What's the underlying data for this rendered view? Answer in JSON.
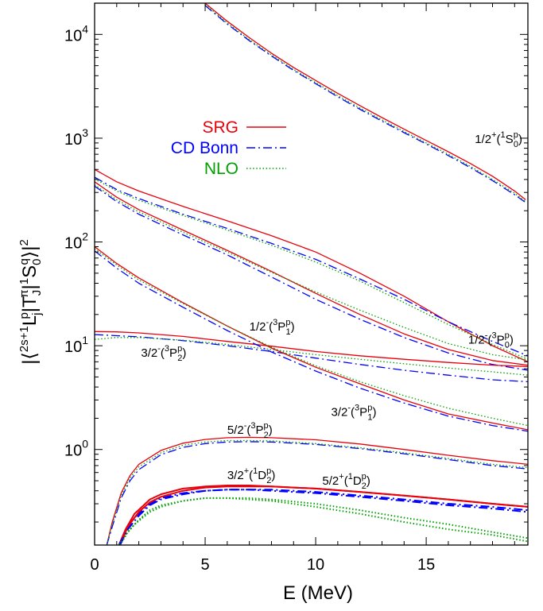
{
  "chart_data": {
    "type": "line",
    "title": "",
    "xlabel": "E  (MeV)",
    "ylabel": "|⟨2s+1Ljp|TJπ|1S0q⟩|2",
    "ylabel_parts": {
      "open": "|⟨",
      "sup1": "2s+1",
      "L": "L",
      "sub1": "j",
      "sup2": "p",
      "mid": "|T",
      "sub2": "J",
      "sup3": "π",
      "bar": "|",
      "sup4": "1",
      "S": "S",
      "sub3": "0",
      "sup5": "q",
      "close": "⟩|",
      "sup6": "2"
    },
    "xlim": [
      0,
      19.6
    ],
    "ylim": [
      0.12,
      20000
    ],
    "yscale": "log",
    "xticks": [
      0,
      5,
      10,
      15
    ],
    "xtick_labels": [
      "0",
      "5",
      "10",
      "15"
    ],
    "yticks": [
      1,
      10,
      100,
      1000,
      10000
    ],
    "ytick_labels": [
      {
        "base": "10",
        "exp": "0"
      },
      {
        "base": "10",
        "exp": "1"
      },
      {
        "base": "10",
        "exp": "2"
      },
      {
        "base": "10",
        "exp": "3"
      },
      {
        "base": "10",
        "exp": "4"
      }
    ],
    "legend_position": "upper-left",
    "legend": [
      {
        "name": "SRG",
        "color": "#e8000b",
        "dash": "solid"
      },
      {
        "name": "CD Bonn",
        "color": "#0000ff",
        "dash": "dashdot"
      },
      {
        "name": "NLO",
        "color": "#00a000",
        "dash": "dotted"
      }
    ],
    "channels": [
      {
        "label": {
          "j": "1/2",
          "parity": "+",
          "spin": "1",
          "L": "S",
          "sub": "0"
        },
        "label_anchor_data": [
          17.2,
          900
        ],
        "x": [
          5.0,
          6,
          7,
          8,
          9,
          10,
          11,
          12,
          13,
          14,
          15,
          16,
          17,
          18,
          19,
          19.5
        ],
        "series": [
          {
            "name": "SRG",
            "values": [
              20000,
              13400,
              9300,
              6600,
              4800,
              3600,
              2700,
              2060,
              1580,
              1220,
              950,
              740,
              570,
              430,
              310,
              255
            ]
          },
          {
            "name": "CD Bonn",
            "values": [
              19000,
              12600,
              8700,
              6200,
              4500,
              3350,
              2500,
              1900,
              1460,
              1130,
              880,
              680,
              520,
              390,
              285,
              240
            ]
          },
          {
            "name": "NLO",
            "values": [
              19400,
              12900,
              8900,
              6350,
              4600,
              3430,
              2570,
              1950,
              1500,
              1160,
              900,
              700,
              535,
              400,
              295,
              245
            ]
          }
        ]
      },
      {
        "label": {
          "j": "1/2",
          "parity": "-",
          "spin": "3",
          "L": "P",
          "sub": "0"
        },
        "label_anchor_data": [
          16.9,
          10.5
        ],
        "x": [
          0,
          1,
          2,
          4,
          6,
          8,
          10,
          12,
          14,
          16,
          18,
          19.6
        ],
        "series": [
          {
            "name": "SRG",
            "values": [
              500,
              380,
              310,
              220,
              160,
              115,
              80,
              50,
              30,
              17,
              10,
              7
            ]
          },
          {
            "name": "CD Bonn",
            "values": [
              420,
              320,
              262,
              185,
              135,
              97,
              68,
              44,
              28,
              17,
              11,
              8
            ]
          },
          {
            "name": "NLO",
            "values": [
              405,
              310,
              252,
              180,
              130,
              93,
              64,
              42,
              26,
              16,
              10.3,
              7.4
            ]
          }
        ]
      },
      {
        "label": {
          "j": "1/2",
          "parity": "-",
          "spin": "3",
          "L": "P",
          "sub": "1"
        },
        "label_anchor_data": [
          7.0,
          14
        ],
        "x": [
          0,
          1,
          2,
          4,
          6,
          8,
          10,
          12,
          14,
          16,
          18,
          19.6
        ],
        "series": [
          {
            "name": "SRG",
            "values": [
              380,
              270,
              205,
              130,
              83,
              52,
              32,
              20,
              13,
              9.2,
              7.2,
              6.5
            ]
          },
          {
            "name": "CD Bonn",
            "values": [
              345,
              245,
              185,
              117,
              75,
              46,
              28,
              18,
              12,
              8.5,
              6.6,
              5.8
            ]
          },
          {
            "name": "NLO",
            "values": [
              355,
              255,
              195,
              124,
              80,
              51,
              33,
              22,
              15,
              10.5,
              8.2,
              7.3
            ]
          }
        ]
      },
      {
        "label": {
          "j": "3/2",
          "parity": "-",
          "spin": "3",
          "L": "P",
          "sub": "2"
        },
        "label_anchor_data": [
          2.1,
          7.8
        ],
        "x": [
          0,
          1,
          2,
          4,
          6,
          8,
          10,
          12,
          14,
          16,
          18,
          19.6
        ],
        "series": [
          {
            "name": "SRG",
            "values": [
              13.7,
              13.6,
              13.3,
              12.3,
              11.0,
              9.9,
              8.8,
              8.0,
              7.4,
              6.9,
              6.5,
              6.3
            ]
          },
          {
            "name": "CD Bonn",
            "values": [
              12.8,
              12.5,
              12.2,
              11.2,
              10.0,
              8.8,
              7.6,
              6.6,
              5.8,
              5.2,
              4.7,
              4.5
            ]
          },
          {
            "name": "NLO",
            "values": [
              11.5,
              12.0,
              12.0,
              11.3,
              10.3,
              9.2,
              8.2,
              7.4,
              6.7,
              6.1,
              5.6,
              5.2
            ]
          }
        ]
      },
      {
        "label": {
          "j": "3/2",
          "parity": "-",
          "spin": "3",
          "L": "P",
          "sub": "1"
        },
        "label_anchor_data": [
          10.7,
          2.1
        ],
        "x": [
          0,
          1,
          2,
          4,
          6,
          8,
          10,
          12,
          14,
          16,
          18,
          19.6
        ],
        "series": [
          {
            "name": "SRG",
            "values": [
              90,
              62,
              45,
              26,
              15.5,
              9.5,
              6.2,
              4.3,
              3.0,
              2.2,
              1.8,
              1.55
            ]
          },
          {
            "name": "CD Bonn",
            "values": [
              82,
              56,
              40,
              23.5,
              14,
              8.7,
              5.7,
              3.9,
              2.8,
              2.1,
              1.7,
              1.5
            ]
          },
          {
            "name": "NLO",
            "values": [
              86,
              60,
              43,
              25.5,
              15.5,
              9.7,
              6.4,
              4.5,
              3.3,
              2.5,
              2.0,
              1.7
            ]
          }
        ]
      },
      {
        "label": {
          "j": "5/2",
          "parity": "-",
          "spin": "3",
          "L": "P",
          "sub": "2"
        },
        "label_anchor_data": [
          6.0,
          1.42
        ],
        "x": [
          0.55,
          0.8,
          1.2,
          1.6,
          2,
          3,
          4,
          5,
          6,
          7,
          8,
          10,
          12,
          14,
          16,
          18,
          19.6
        ],
        "series": [
          {
            "name": "SRG",
            "values": [
              0.12,
              0.2,
              0.38,
              0.56,
              0.72,
              0.98,
              1.15,
              1.25,
              1.3,
              1.31,
              1.3,
              1.24,
              1.13,
              1.0,
              0.88,
              0.78,
              0.72
            ]
          },
          {
            "name": "CD Bonn",
            "values": [
              0.12,
              0.18,
              0.34,
              0.5,
              0.64,
              0.89,
              1.05,
              1.14,
              1.18,
              1.19,
              1.18,
              1.12,
              1.02,
              0.91,
              0.8,
              0.7,
              0.65
            ]
          },
          {
            "name": "NLO",
            "values": [
              0.12,
              0.19,
              0.36,
              0.53,
              0.68,
              0.93,
              1.1,
              1.18,
              1.22,
              1.22,
              1.21,
              1.14,
              1.04,
              0.93,
              0.82,
              0.72,
              0.67
            ]
          }
        ]
      },
      {
        "label": {
          "j": "3/2",
          "parity": "+",
          "spin": "1",
          "L": "D",
          "sub": "2"
        },
        "label_anchor_data": [
          6.0,
          0.52
        ],
        "x": [
          1.1,
          1.4,
          1.8,
          2.5,
          3,
          4,
          5,
          6,
          7,
          8,
          10,
          12,
          14,
          16,
          18,
          19.6
        ],
        "series": [
          {
            "name": "SRG",
            "values": [
              0.12,
              0.17,
              0.24,
              0.33,
              0.37,
              0.42,
              0.44,
              0.45,
              0.45,
              0.44,
              0.42,
              0.39,
              0.36,
              0.33,
              0.3,
              0.28
            ]
          },
          {
            "name": "CD Bonn",
            "values": [
              0.12,
              0.16,
              0.22,
              0.3,
              0.34,
              0.38,
              0.4,
              0.41,
              0.41,
              0.4,
              0.38,
              0.35,
              0.32,
              0.29,
              0.27,
              0.25
            ]
          },
          {
            "name": "NLO",
            "values": [
              0.12,
              0.15,
              0.19,
              0.25,
              0.28,
              0.32,
              0.34,
              0.34,
              0.33,
              0.32,
              0.28,
              0.24,
              0.2,
              0.17,
              0.15,
              0.13
            ]
          }
        ]
      },
      {
        "label": {
          "j": "5/2",
          "parity": "+",
          "spin": "1",
          "L": "D",
          "sub": "2"
        },
        "label_anchor_data": [
          10.3,
          0.46
        ],
        "x": [
          1.15,
          1.5,
          2,
          2.5,
          3,
          4,
          5,
          6,
          7,
          8,
          10,
          12,
          14,
          16,
          18,
          19.6
        ],
        "series": [
          {
            "name": "SRG",
            "values": [
              0.12,
              0.18,
              0.25,
              0.31,
              0.35,
              0.4,
              0.43,
              0.44,
              0.44,
              0.44,
              0.42,
              0.39,
              0.36,
              0.33,
              0.3,
              0.28
            ]
          },
          {
            "name": "CD Bonn",
            "values": [
              0.12,
              0.17,
              0.23,
              0.29,
              0.33,
              0.37,
              0.4,
              0.41,
              0.41,
              0.41,
              0.39,
              0.36,
              0.33,
              0.3,
              0.28,
              0.26
            ]
          },
          {
            "name": "NLO",
            "values": [
              0.12,
              0.16,
              0.21,
              0.26,
              0.29,
              0.32,
              0.34,
              0.34,
              0.34,
              0.33,
              0.3,
              0.26,
              0.22,
              0.19,
              0.16,
              0.14
            ]
          }
        ]
      }
    ]
  }
}
